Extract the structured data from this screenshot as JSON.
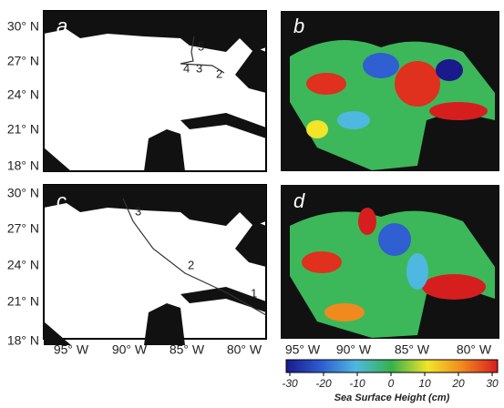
{
  "panels": [
    {
      "letter": "a",
      "markers": [
        "5",
        "4",
        "3",
        "2"
      ]
    },
    {
      "letter": "b"
    },
    {
      "letter": "c",
      "markers": [
        "3",
        "2",
        "1"
      ]
    },
    {
      "letter": "d"
    }
  ],
  "lat_labels_top": [
    "30° N",
    "27° N",
    "24° N",
    "21° N",
    "18° N"
  ],
  "lat_labels_bottom": [
    "30° N",
    "27° N",
    "24° N",
    "21° N",
    "18° N"
  ],
  "lon_labels_left": [
    "95° W",
    "90° W",
    "85° W",
    "80° W"
  ],
  "lon_labels_right": [
    "95° W",
    "90° W",
    "85° W",
    "80° W"
  ],
  "colorbar": {
    "label": "Sea Surface Height (cm)",
    "lim": [
      -30,
      30
    ],
    "ticks": [
      -30,
      -20,
      -10,
      0,
      10,
      20,
      30
    ]
  }
}
